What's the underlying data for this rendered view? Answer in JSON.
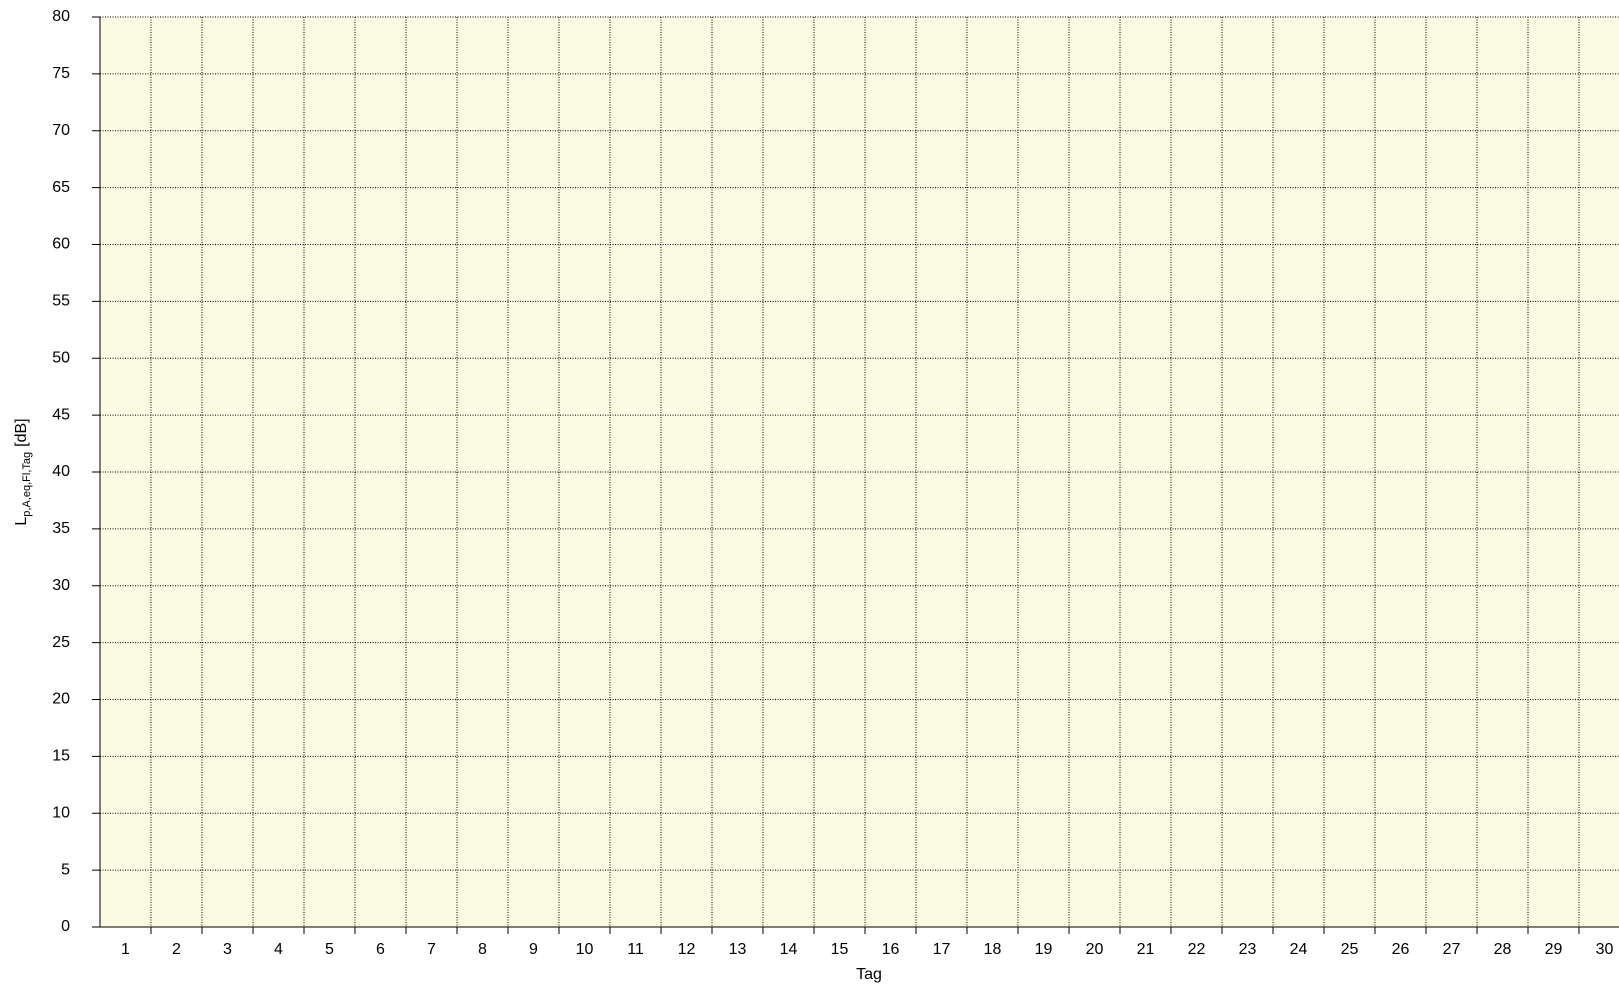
{
  "chart_data": {
    "type": "bar",
    "ylabel": {
      "main": "L",
      "sub": "p,A,eq,Fl,Tag",
      "unit": "[dB]"
    },
    "xlabel": "Tag",
    "categories": [
      "1",
      "2",
      "3",
      "4",
      "5",
      "6",
      "7",
      "8",
      "9",
      "10",
      "11",
      "12",
      "13",
      "14",
      "15",
      "16",
      "17",
      "18",
      "19",
      "20",
      "21",
      "22",
      "23",
      "24",
      "25",
      "26",
      "27",
      "28",
      "29",
      "30"
    ],
    "ylim": [
      0,
      80
    ],
    "yticks": [
      0,
      5,
      10,
      15,
      20,
      25,
      30,
      35,
      40,
      45,
      50,
      55,
      60,
      65,
      70,
      75,
      80
    ],
    "grid": true,
    "background": "#fbfbe1"
  }
}
